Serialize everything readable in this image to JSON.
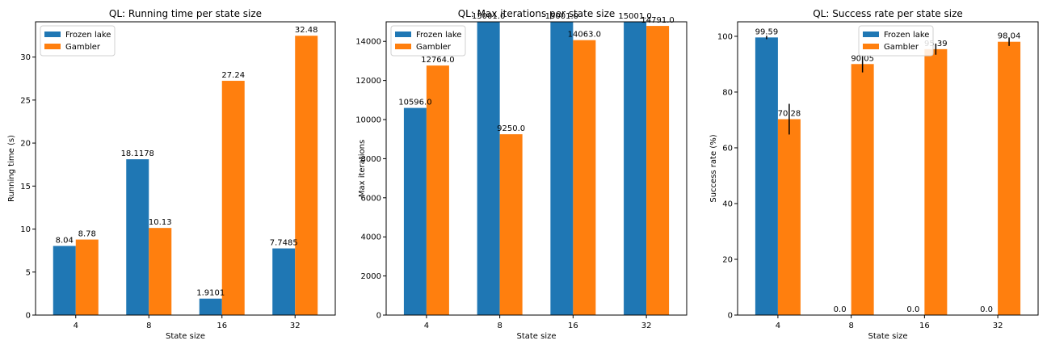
{
  "colors": {
    "frozen": "#1f77b4",
    "gambler": "#ff7f0e"
  },
  "chart_data": [
    {
      "type": "bar",
      "title": "QL: Running time per state size",
      "xlabel": "State size",
      "ylabel": "Running time (s)",
      "categories": [
        "4",
        "8",
        "16",
        "32"
      ],
      "ylim": [
        0,
        34.1
      ],
      "yticks": [
        0,
        5,
        10,
        15,
        20,
        25,
        30
      ],
      "legend_position": "top-left",
      "series": [
        {
          "name": "Frozen lake",
          "values": [
            8.04,
            18.1178,
            1.9101,
            7.7485
          ],
          "labels": [
            "8.04",
            "18.1178",
            "1.9101",
            "7.7485"
          ]
        },
        {
          "name": "Gambler",
          "values": [
            8.78,
            10.13,
            27.24,
            32.48
          ],
          "labels": [
            "8.78",
            "10.13",
            "27.24",
            "32.48"
          ]
        }
      ]
    },
    {
      "type": "bar",
      "title": "QL: Max iterations per state size",
      "xlabel": "State size",
      "ylabel": "Max iterations",
      "categories": [
        "4",
        "8",
        "16",
        "32"
      ],
      "ylim": [
        0,
        15001
      ],
      "yticks": [
        0,
        2000,
        4000,
        6000,
        8000,
        10000,
        12000,
        14000
      ],
      "legend_position": "top-left",
      "series": [
        {
          "name": "Frozen lake",
          "values": [
            10596,
            15001,
            15001,
            15001
          ],
          "labels": [
            "10596.0",
            "15001.0",
            "15001.0",
            "15001.0"
          ]
        },
        {
          "name": "Gambler",
          "values": [
            12764,
            9250,
            14063,
            14791
          ],
          "labels": [
            "12764.0",
            "9250.0",
            "14063.0",
            "14791.0"
          ]
        }
      ]
    },
    {
      "type": "bar",
      "title": "QL: Success rate per state size",
      "xlabel": "State size",
      "ylabel": "Success rate (%)",
      "categories": [
        "4",
        "8",
        "16",
        "32"
      ],
      "ylim": [
        0,
        105.2
      ],
      "yticks": [
        0,
        20,
        40,
        60,
        80,
        100
      ],
      "legend_position": "top-center",
      "series": [
        {
          "name": "Frozen lake",
          "values": [
            99.59,
            0,
            0,
            0
          ],
          "labels": [
            "99.59",
            "0.0",
            "0.0",
            "0.0"
          ],
          "errors": [
            0.6,
            0,
            0,
            0
          ]
        },
        {
          "name": "Gambler",
          "values": [
            70.28,
            90.05,
            95.39,
            98.04
          ],
          "labels": [
            "70.28",
            "90.05",
            "95.39",
            "98.04"
          ],
          "errors": [
            5.5,
            3,
            2,
            1.5
          ]
        }
      ]
    }
  ]
}
